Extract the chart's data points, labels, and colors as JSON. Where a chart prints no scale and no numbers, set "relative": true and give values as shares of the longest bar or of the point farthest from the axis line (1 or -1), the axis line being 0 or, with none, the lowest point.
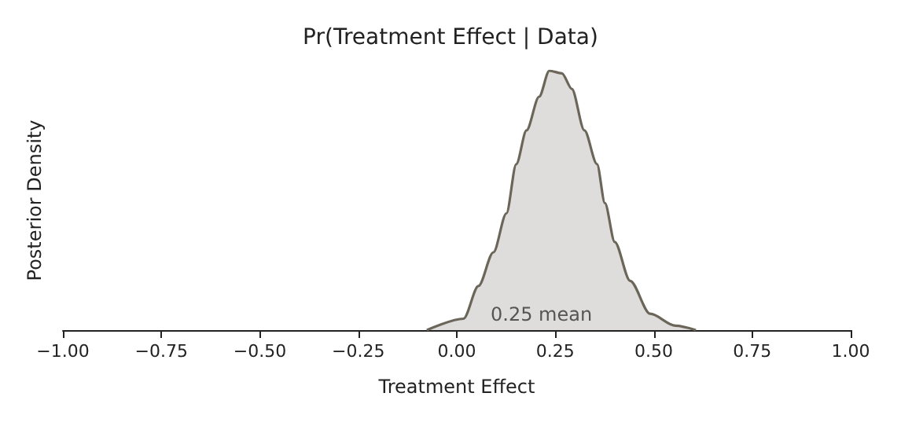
{
  "chart_data": {
    "type": "area",
    "title": "Pr(Treatment Effect | Data)",
    "xlabel": "Treatment Effect",
    "ylabel": "Posterior Density",
    "relative": true,
    "xlim": [
      -1,
      1
    ],
    "xticks": [
      {
        "value": -1,
        "label": "−1.00"
      },
      {
        "value": -0.75,
        "label": "−0.75"
      },
      {
        "value": -0.5,
        "label": "−0.50"
      },
      {
        "value": -0.25,
        "label": "−0.25"
      },
      {
        "value": 0,
        "label": "0.00"
      },
      {
        "value": 0.25,
        "label": "0.25"
      },
      {
        "value": 0.5,
        "label": "0.50"
      },
      {
        "value": 0.75,
        "label": "0.75"
      },
      {
        "value": 1,
        "label": "1.00"
      }
    ],
    "series": [
      {
        "color": "#6b6659",
        "x": [
          -0.076,
          0.017,
          0.055,
          0.093,
          0.126,
          0.151,
          0.177,
          0.209,
          0.235,
          0.267,
          0.292,
          0.324,
          0.356,
          0.376,
          0.401,
          0.44,
          0.491,
          0.555,
          0.607
        ],
        "values": [
          0,
          0.044,
          0.17,
          0.3,
          0.45,
          0.64,
          0.77,
          0.9,
          1,
          0.99,
          0.93,
          0.77,
          0.64,
          0.49,
          0.34,
          0.19,
          0.063,
          0.017,
          0
        ]
      }
    ],
    "annotations": [
      "0.25 mean"
    ],
    "grid": false
  }
}
